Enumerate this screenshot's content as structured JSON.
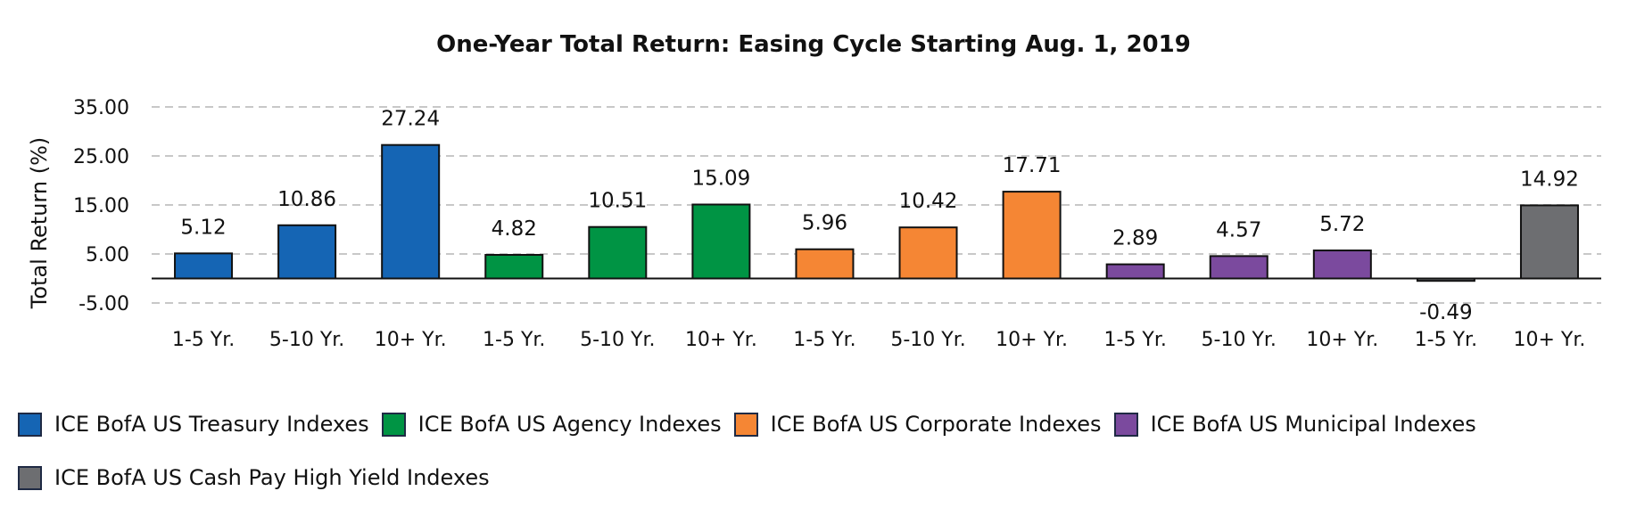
{
  "chart_data": {
    "type": "bar",
    "title": "One-Year Total Return: Easing Cycle Starting Aug. 1, 2019",
    "ylabel": "Total Return (%)",
    "xlabel": "",
    "ylim": [
      -5,
      35
    ],
    "yticks": [
      "35.00",
      "25.00",
      "15.00",
      "5.00",
      "-5.00"
    ],
    "ytick_values": [
      35,
      25,
      15,
      5,
      -5
    ],
    "grid": "horizontal-dashed",
    "legend_position": "bottom",
    "categories": [
      "1-5 Yr.",
      "5-10 Yr.",
      "10+ Yr.",
      "1-5 Yr.",
      "5-10 Yr.",
      "10+ Yr.",
      "1-5 Yr.",
      "5-10 Yr.",
      "10+ Yr.",
      "1-5 Yr.",
      "5-10 Yr.",
      "10+ Yr.",
      "1-5 Yr.",
      "10+ Yr."
    ],
    "values": [
      5.12,
      10.86,
      27.24,
      4.82,
      10.51,
      15.09,
      5.96,
      10.42,
      17.71,
      2.89,
      4.57,
      5.72,
      -0.49,
      14.92
    ],
    "value_labels": [
      "5.12",
      "10.86",
      "27.24",
      "4.82",
      "10.51",
      "15.09",
      "5.96",
      "10.42",
      "17.71",
      "2.89",
      "4.57",
      "5.72",
      "-0.49",
      "14.92"
    ],
    "bar_series_index": [
      0,
      0,
      0,
      1,
      1,
      1,
      2,
      2,
      2,
      3,
      3,
      3,
      4,
      4
    ],
    "series": [
      {
        "name": "ICE BofA US Treasury Indexes",
        "color": "#1565b4"
      },
      {
        "name": "ICE BofA US Agency Indexes",
        "color": "#009444"
      },
      {
        "name": "ICE BofA US Corporate Indexes",
        "color": "#f58634"
      },
      {
        "name": "ICE BofA US Municipal Indexes",
        "color": "#7b4a9e"
      },
      {
        "name": "ICE BofA US Cash Pay High Yield Indexes",
        "color": "#6d6e71"
      }
    ]
  }
}
